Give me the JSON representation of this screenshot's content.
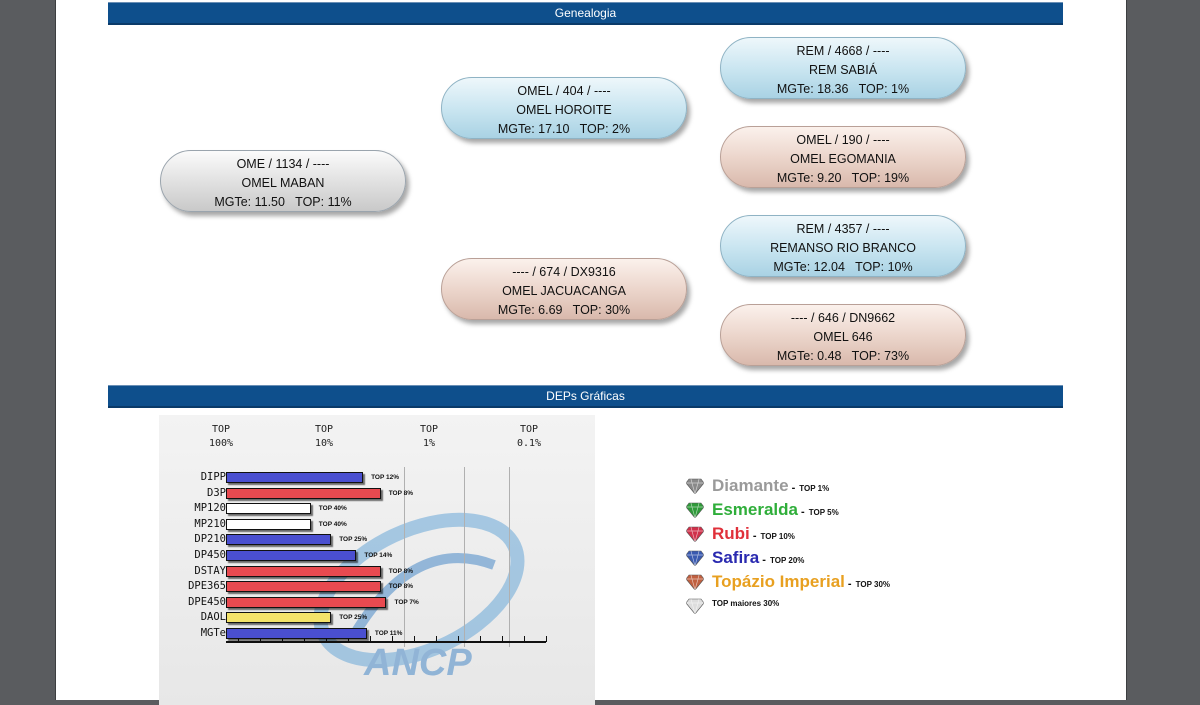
{
  "genealogy": {
    "section_title": "Genealogia",
    "animal": {
      "id_line": "OME / 1134 / ----",
      "name": "OMEL MABAN",
      "stats": "MGTe: 11.50   TOP: 11%"
    },
    "sire": {
      "id_line": "OMEL / 404 / ----",
      "name": "OMEL HOROITE",
      "stats": "MGTe: 17.10   TOP: 2%"
    },
    "dam": {
      "id_line": "---- / 674 / DX9316",
      "name": "OMEL JACUACANGA",
      "stats": "MGTe: 6.69   TOP: 30%"
    },
    "sire_sire": {
      "id_line": "REM / 4668 / ----",
      "name": "REM SABIÁ",
      "stats": "MGTe: 18.36   TOP: 1%"
    },
    "sire_dam": {
      "id_line": "OMEL / 190 / ----",
      "name": "OMEL EGOMANIA",
      "stats": "MGTe: 9.20   TOP: 19%"
    },
    "dam_sire": {
      "id_line": "REM / 4357 / ----",
      "name": "REMANSO RIO BRANCO",
      "stats": "MGTe: 12.04   TOP: 10%"
    },
    "dam_dam": {
      "id_line": "---- / 646 / DN9662",
      "name": "OMEL 646",
      "stats": "MGTe: 0.48   TOP: 73%"
    }
  },
  "deps": {
    "section_title": "DEPs Gráficas",
    "watermark_text": "ANCP"
  },
  "chart_data": {
    "type": "bar",
    "orientation": "horizontal",
    "column_headers": [
      {
        "line1": "TOP",
        "line2": "100%"
      },
      {
        "line1": "TOP",
        "line2": "10%"
      },
      {
        "line1": "TOP",
        "line2": "1%"
      },
      {
        "line1": "TOP",
        "line2": "0.1%"
      }
    ],
    "categories": [
      "DIPP",
      "D3P",
      "MP120",
      "MP210",
      "DP210",
      "DP450",
      "DSTAY",
      "DPE365",
      "DPE450",
      "DAOL",
      "MGTe"
    ],
    "values": [
      12,
      8,
      40,
      40,
      25,
      14,
      8,
      8,
      7,
      25,
      11
    ],
    "value_labels": [
      "TOP 12%",
      "TOP 8%",
      "TOP 40%",
      "TOP 40%",
      "TOP 25%",
      "TOP 14%",
      "TOP 8%",
      "TOP 8%",
      "TOP 7%",
      "TOP 25%",
      "TOP 11%"
    ],
    "colors": [
      "#4a4fd0",
      "#e84a50",
      "#ffffff",
      "#ffffff",
      "#4a4fd0",
      "#4a4fd0",
      "#e84a50",
      "#e84a50",
      "#e84a50",
      "#f4e36a",
      "#4a4fd0"
    ],
    "legend_placement": "right",
    "grid": true
  },
  "legend": [
    {
      "name": "Diamante",
      "top": "TOP 1%",
      "color": "#9a9a9a",
      "gem": "#8a8a8a"
    },
    {
      "name": "Esmeralda",
      "top": "TOP 5%",
      "color": "#2fae3a",
      "gem": "#2f9a3a"
    },
    {
      "name": "Rubi",
      "top": "TOP 10%",
      "color": "#e0303a",
      "gem": "#d0304a"
    },
    {
      "name": "Safira",
      "top": "TOP 20%",
      "color": "#2a2ab0",
      "gem": "#3a5ab0"
    },
    {
      "name": "Topázio Imperial",
      "top": "TOP 30%",
      "color": "#e8a020",
      "gem": "#c06040"
    }
  ],
  "legend_other": {
    "text": "TOP maiores 30%",
    "gem": "#dddddd"
  }
}
